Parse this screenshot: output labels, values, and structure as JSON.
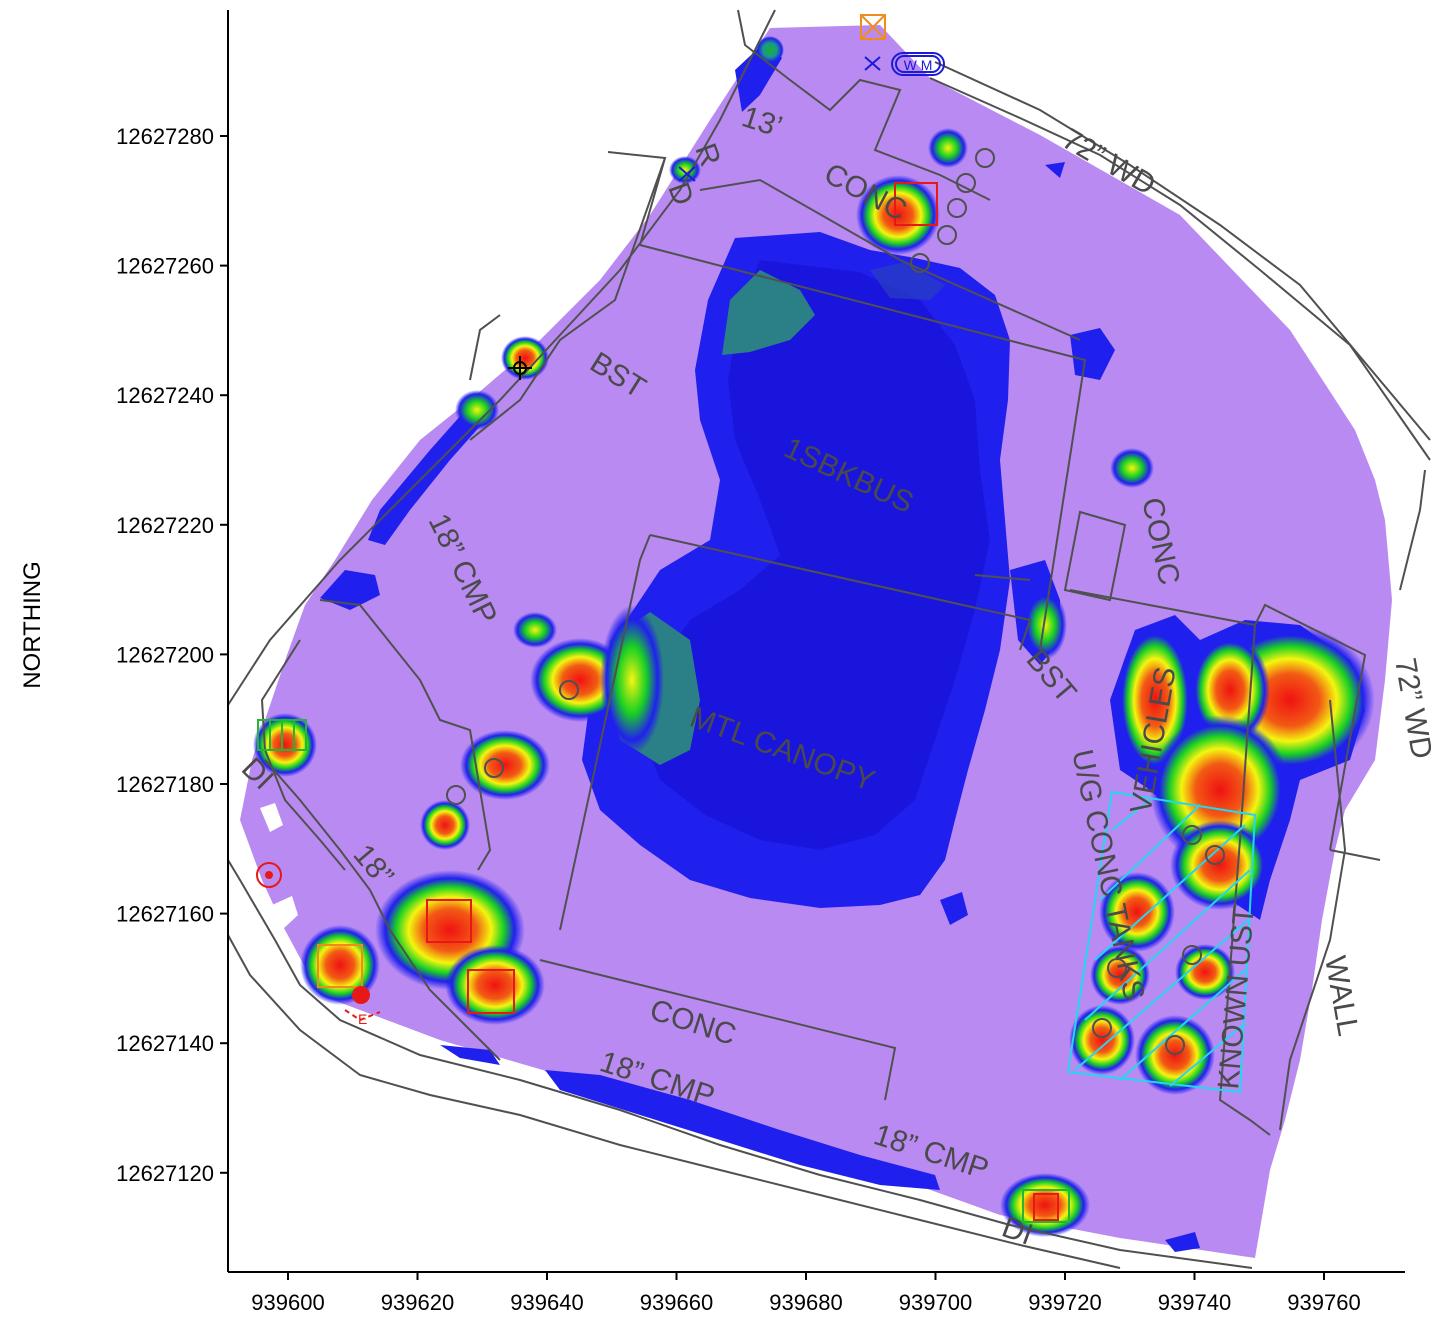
{
  "colors": {
    "background": "#b98bf2",
    "contour_blue": "#2020ee",
    "contour_dark_blue": "#1a14d8",
    "contour_teal": "#2b7f86",
    "contour_green": "#18d023",
    "contour_yellow": "#f5f50f",
    "contour_red": "#f01212",
    "linework": "#505050",
    "ust_outline": "#24d7f0",
    "symbol_orange": "#f08c1e",
    "symbol_green": "#22b833",
    "symbol_red": "#e81818"
  },
  "axes": {
    "y_title": "NORTHING",
    "x_ticks": [
      "939600",
      "939620",
      "939640",
      "939660",
      "939680",
      "939700",
      "939720",
      "939740",
      "939760"
    ],
    "y_ticks": [
      "12627280",
      "12627260",
      "12627240",
      "12627220",
      "12627200",
      "12627180",
      "12627160",
      "12627140",
      "12627120"
    ]
  },
  "map_labels": {
    "wd_top": "72” WD",
    "wd_right": "72” WD",
    "thirteen": "13’",
    "conc_top": "CONC",
    "r_label": "R",
    "d_label": "D",
    "bst_left": "BST",
    "bldg_bus": "1SBKBUS",
    "cmp_left": "18” CMP",
    "conc_right": "CONC",
    "bst_right": "BST",
    "canopy": "MTL CANOPY",
    "vehicles": "VEHICLES",
    "ug_tanks": "U/G CONC TANKS",
    "known_ust": "KNOWN UST",
    "wall": "WALL",
    "di_left": "DI",
    "cmp_sw": "18”",
    "conc_bottom": "CONC",
    "cmp_bottom": "18” CMP",
    "cmp_bottom2": "18” CMP",
    "di_bottom": "DI",
    "wm": "W M",
    "e_label": "E"
  }
}
